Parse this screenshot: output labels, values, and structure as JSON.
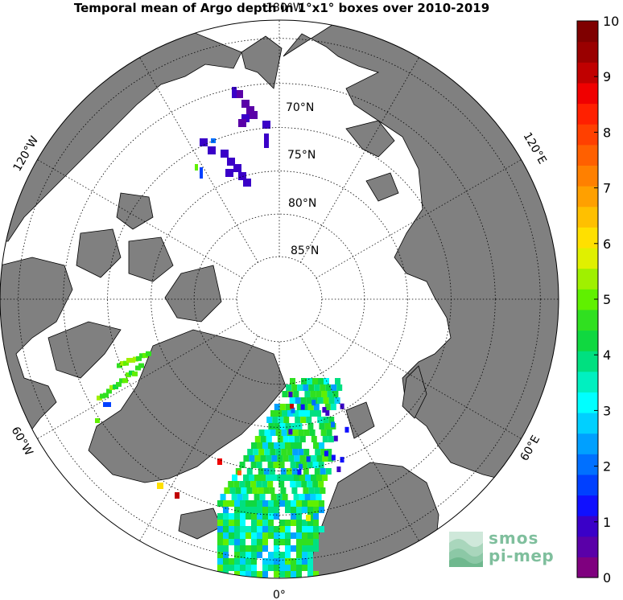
{
  "title": "Temporal mean of Argo depth in 1°x1° boxes over 2010-2019",
  "map": {
    "projection": "north-polar-stereographic",
    "center_lat": 90,
    "boundary_lat": 58,
    "land_color": "#808080",
    "ocean_color": "#ffffff",
    "lat_labels": [
      "70°N",
      "75°N",
      "80°N",
      "85°N"
    ],
    "lon_labels": {
      "top": "180°W",
      "bottom": "0°",
      "upper_left": "120°W",
      "upper_right": "120°E",
      "lower_left": "60°W",
      "lower_right": "60°E"
    }
  },
  "colorbar": {
    "min": 0,
    "max": 10,
    "tick_labels": [
      "0",
      "1",
      "2",
      "3",
      "4",
      "5",
      "6",
      "7",
      "8",
      "9",
      "10"
    ],
    "colors": [
      "#7f007f",
      "#5a00a8",
      "#3a00c8",
      "#1010ff",
      "#0040ff",
      "#0070ff",
      "#00a0ff",
      "#00d0ff",
      "#00ffff",
      "#00f0c0",
      "#00e080",
      "#10d840",
      "#30e020",
      "#60f000",
      "#a0f000",
      "#e0f000",
      "#ffe000",
      "#ffc000",
      "#ffa000",
      "#ff8000",
      "#ff6000",
      "#ff4000",
      "#ff2000",
      "#f00000",
      "#c00000",
      "#9a0000",
      "#7f0000"
    ]
  },
  "logo": {
    "line1": "smos",
    "line2": "pi-mep"
  }
}
